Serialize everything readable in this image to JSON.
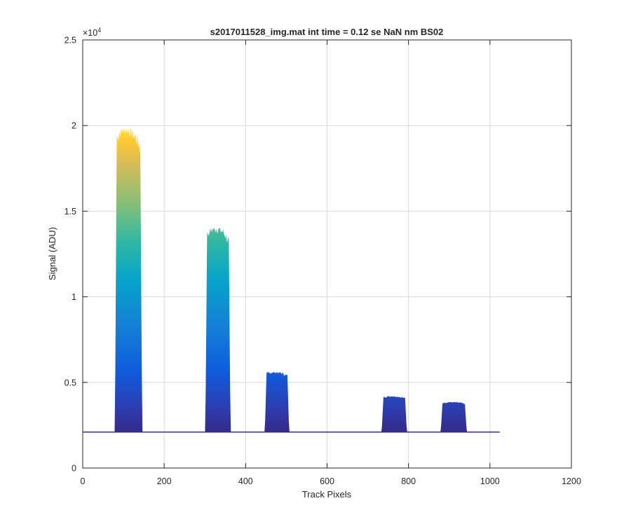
{
  "chart_data": {
    "type": "area",
    "title": "s2017011528_img.mat int time = 0.12 se  NaN nm BS02",
    "xlabel": "Track Pixels",
    "ylabel": "Signal (ADU)",
    "xlim": [
      0,
      1200
    ],
    "ylim": [
      0,
      25000
    ],
    "x_ticks": [
      0,
      200,
      400,
      600,
      800,
      1000,
      1200
    ],
    "x_tick_labels": [
      "0",
      "200",
      "400",
      "600",
      "800",
      "1000",
      "1200"
    ],
    "y_ticks": [
      0,
      5000,
      10000,
      15000,
      20000,
      25000
    ],
    "y_tick_labels": [
      "0",
      "0.5",
      "1",
      "1.5",
      "2",
      "2.5"
    ],
    "y_exponent_label": "×10",
    "y_exponent_power": "4",
    "grid": true,
    "baseline": 2100,
    "trace_x_range": [
      0,
      1024
    ],
    "colormap": "parula",
    "peaks": [
      {
        "name": "peak-1",
        "x_start": 80,
        "x_end": 145,
        "max": 19800
      },
      {
        "name": "peak-2",
        "x_start": 302,
        "x_end": 362,
        "max": 14000
      },
      {
        "name": "peak-3",
        "x_start": 448,
        "x_end": 506,
        "max": 5600
      },
      {
        "name": "peak-4",
        "x_start": 735,
        "x_end": 795,
        "max": 4200
      },
      {
        "name": "peak-5",
        "x_start": 880,
        "x_end": 942,
        "max": 3850
      }
    ],
    "colors": {
      "parula_low": "#352a87",
      "parula_mid1": "#0f5cdd",
      "parula_mid2": "#1481d6",
      "parula_mid3": "#06a4ca",
      "parula_mid4": "#2eb7a4",
      "parula_mid5": "#87bf77",
      "parula_mid6": "#d1bb59",
      "parula_high": "#fec832",
      "parula_top": "#f9fb0e",
      "baseline_line": "#2e2a8a",
      "grid": "#d9d9d9",
      "axis": "#262626"
    }
  }
}
